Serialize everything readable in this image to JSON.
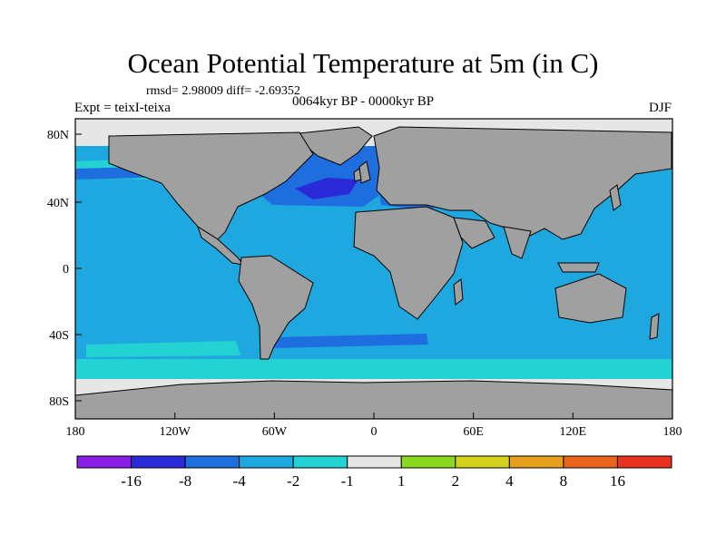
{
  "title": "Ocean Potential Temperature at 5m (in C)",
  "stats": "rmsd= 2.98009 diff= -2.69352",
  "experiment": "Expt = teixI-teixa",
  "period": "0064kyr BP - 0000kyr BP",
  "season": "DJF",
  "x_tick_labels": [
    "180",
    "120W",
    "60W",
    "0",
    "60E",
    "120E",
    "180"
  ],
  "y_tick_labels": [
    "80N",
    "40N",
    "0",
    "40S",
    "80S"
  ],
  "colorbar": {
    "labels": [
      "-16",
      "-8",
      "-4",
      "-2",
      "-1",
      "1",
      "2",
      "4",
      "8",
      "16"
    ],
    "colors": [
      "#8a1ee6",
      "#2a2ad8",
      "#1e6ee0",
      "#1fa8e0",
      "#23d2d2",
      "#e6e6e6",
      "#8cd81e",
      "#d2d21e",
      "#e6a01e",
      "#e6641e",
      "#e6321e"
    ]
  },
  "colors": {
    "land": "#a0a0a0",
    "ocean_main": "#1fa8e0",
    "ocean_strong": "#1e6ee0",
    "ocean_extreme": "#2a2ad8",
    "ocean_weak": "#23d2d2",
    "sea_ice": "#e6e6e6"
  }
}
